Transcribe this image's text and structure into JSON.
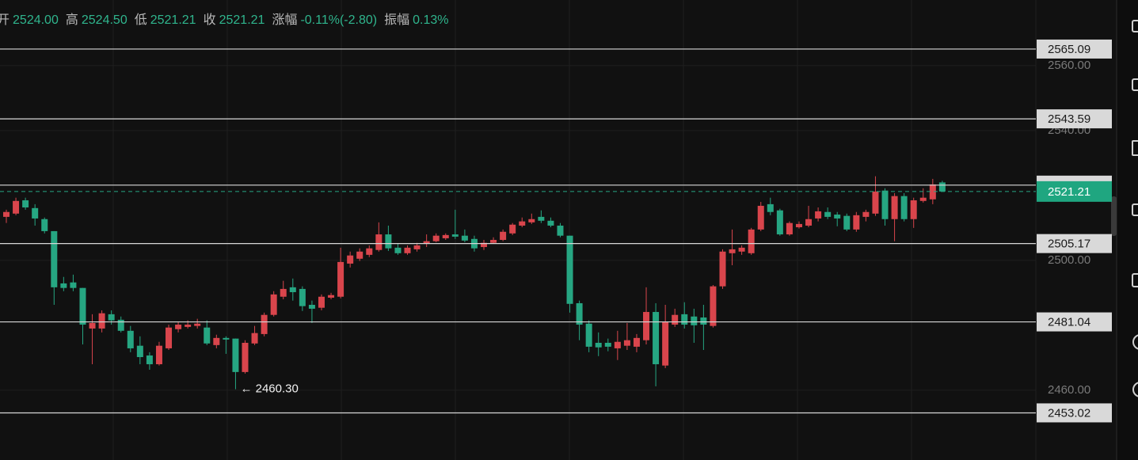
{
  "header": [
    {
      "label": "开",
      "value": "2524.00"
    },
    {
      "label": "高",
      "value": "2524.50"
    },
    {
      "label": "低",
      "value": "2521.21"
    },
    {
      "label": "收",
      "value": "2521.21"
    },
    {
      "label": "涨幅",
      "value": "-0.11%(-2.80)"
    },
    {
      "label": "振幅",
      "value": "0.13%"
    }
  ],
  "chart_data": {
    "type": "candlestick",
    "up_color": "#d9454c",
    "down_color": "#26a682",
    "ylim": [
      2438.5,
      2580.2
    ],
    "yticks": [
      {
        "value": 2560,
        "label": "2560.00"
      },
      {
        "value": 2540,
        "label": "2540.00"
      },
      {
        "value": 2500,
        "label": "2500.00"
      },
      {
        "value": 2460,
        "label": "2460.00"
      }
    ],
    "grid": true,
    "open": [
      2513.4,
      2514.4,
      2518.5,
      2516.1,
      2512.7,
      2509.0,
      2492.9,
      2493.2,
      2491.5,
      2479.0,
      2479.0,
      2483.4,
      2481.7,
      2478.3,
      2473.7,
      2470.7,
      2468.0,
      2472.9,
      2478.8,
      2479.5,
      2479.8,
      2479.3,
      2473.9,
      2476.1,
      2475.9,
      2465.6,
      2474.4,
      2477.3,
      2483.2,
      2488.8,
      2491.7,
      2491.2,
      2486.3,
      2485.4,
      2488.5,
      2488.8,
      2499.0,
      2500.5,
      2501.7,
      2503.2,
      2508.0,
      2503.9,
      2502.2,
      2503.4,
      2505.1,
      2505.9,
      2506.8,
      2508.0,
      2507.6,
      2506.6,
      2504.1,
      2505.4,
      2506.3,
      2508.3,
      2510.7,
      2511.7,
      2513.4,
      2512.2,
      2510.7,
      2507.6,
      2486.8,
      2480.5,
      2474.6,
      2474.6,
      2472.9,
      2473.7,
      2473.4,
      2475.4,
      2484.1,
      2467.6,
      2480.2,
      2483.4,
      2482.7,
      2482.4,
      2479.8,
      2492.0,
      2502.2,
      2502.7,
      2502.2,
      2509.5,
      2517.3,
      2515.4,
      2508.0,
      2510.2,
      2510.7,
      2512.9,
      2514.9,
      2514.1,
      2513.7,
      2509.5,
      2513.4,
      2514.4,
      2521.5,
      2512.7,
      2519.8,
      2512.7,
      2518.3,
      2518.8,
      2524.0
    ],
    "high": [
      2515.6,
      2519.3,
      2519.3,
      2517.3,
      2513.2,
      2509.0,
      2494.9,
      2495.6,
      2491.5,
      2483.4,
      2484.6,
      2484.6,
      2482.7,
      2479.8,
      2476.6,
      2471.7,
      2474.9,
      2480.2,
      2481.0,
      2481.5,
      2482.0,
      2481.5,
      2477.1,
      2476.6,
      2475.9,
      2475.4,
      2479.8,
      2483.9,
      2490.5,
      2493.7,
      2494.4,
      2492.0,
      2487.6,
      2489.5,
      2490.0,
      2503.9,
      2502.7,
      2503.7,
      2504.6,
      2511.7,
      2510.7,
      2505.1,
      2504.6,
      2505.4,
      2508.0,
      2508.3,
      2508.3,
      2515.6,
      2509.5,
      2507.6,
      2506.3,
      2507.1,
      2509.5,
      2511.5,
      2513.2,
      2514.4,
      2515.4,
      2513.2,
      2511.5,
      2507.6,
      2487.6,
      2481.5,
      2477.8,
      2475.9,
      2478.3,
      2480.7,
      2477.3,
      2491.7,
      2486.8,
      2486.3,
      2485.1,
      2487.1,
      2485.1,
      2486.3,
      2492.4,
      2503.4,
      2509.5,
      2504.6,
      2510.0,
      2518.0,
      2519.3,
      2515.9,
      2512.0,
      2512.0,
      2516.8,
      2516.3,
      2516.3,
      2514.9,
      2514.4,
      2514.9,
      2515.6,
      2525.9,
      2522.2,
      2520.7,
      2520.7,
      2519.3,
      2522.2,
      2525.1,
      2524.5
    ],
    "low": [
      2511.5,
      2513.9,
      2515.6,
      2510.7,
      2508.3,
      2486.3,
      2490.5,
      2490.5,
      2474.1,
      2468.0,
      2477.8,
      2480.2,
      2477.8,
      2471.7,
      2468.0,
      2466.3,
      2467.6,
      2472.4,
      2477.8,
      2479.0,
      2479.0,
      2473.9,
      2472.9,
      2471.2,
      2460.3,
      2465.1,
      2473.9,
      2476.6,
      2482.7,
      2488.0,
      2487.6,
      2484.4,
      2480.7,
      2484.6,
      2488.0,
      2488.3,
      2497.8,
      2499.8,
      2501.0,
      2502.7,
      2502.9,
      2501.7,
      2501.7,
      2502.7,
      2504.1,
      2505.6,
      2506.3,
      2506.6,
      2505.6,
      2502.7,
      2503.2,
      2505.1,
      2505.9,
      2507.8,
      2510.2,
      2511.2,
      2511.5,
      2510.2,
      2507.1,
      2483.9,
      2475.4,
      2471.7,
      2470.5,
      2472.0,
      2469.3,
      2472.4,
      2471.7,
      2474.1,
      2461.2,
      2466.8,
      2479.5,
      2479.0,
      2474.6,
      2472.4,
      2479.3,
      2491.2,
      2498.5,
      2501.7,
      2501.7,
      2509.0,
      2513.9,
      2507.6,
      2507.6,
      2509.8,
      2510.2,
      2512.0,
      2512.7,
      2510.5,
      2509.0,
      2508.8,
      2512.0,
      2513.7,
      2510.7,
      2505.9,
      2512.0,
      2510.0,
      2517.8,
      2517.3,
      2521.21
    ],
    "close": [
      2514.9,
      2518.3,
      2516.3,
      2512.9,
      2509.0,
      2491.7,
      2491.5,
      2491.5,
      2480.2,
      2480.7,
      2483.7,
      2481.5,
      2478.3,
      2472.9,
      2470.2,
      2468.0,
      2473.7,
      2479.3,
      2480.2,
      2480.2,
      2480.5,
      2474.4,
      2476.1,
      2475.6,
      2465.6,
      2474.6,
      2477.6,
      2483.2,
      2489.5,
      2491.2,
      2490.2,
      2485.9,
      2485.1,
      2488.8,
      2489.3,
      2499.5,
      2501.5,
      2502.7,
      2503.7,
      2508.0,
      2503.7,
      2502.2,
      2503.9,
      2504.6,
      2505.9,
      2507.6,
      2507.8,
      2507.3,
      2506.1,
      2503.7,
      2505.4,
      2506.3,
      2508.8,
      2511.0,
      2512.0,
      2512.7,
      2512.2,
      2510.7,
      2507.6,
      2486.6,
      2480.2,
      2473.4,
      2473.2,
      2473.4,
      2474.9,
      2475.4,
      2476.1,
      2484.1,
      2468.0,
      2481.0,
      2483.2,
      2480.2,
      2480.0,
      2480.2,
      2492.0,
      2502.7,
      2503.4,
      2503.9,
      2509.5,
      2516.8,
      2514.9,
      2508.0,
      2511.5,
      2511.2,
      2512.7,
      2515.1,
      2513.4,
      2512.9,
      2509.5,
      2513.9,
      2514.9,
      2521.2,
      2512.7,
      2519.8,
      2512.7,
      2518.5,
      2519.3,
      2523.4,
      2521.21
    ],
    "levels": [
      2565.09,
      2543.59,
      2523.17,
      2505.17,
      2481.04,
      2453.02
    ],
    "last_price": 2521.21,
    "low_label": "← 2460.30"
  }
}
